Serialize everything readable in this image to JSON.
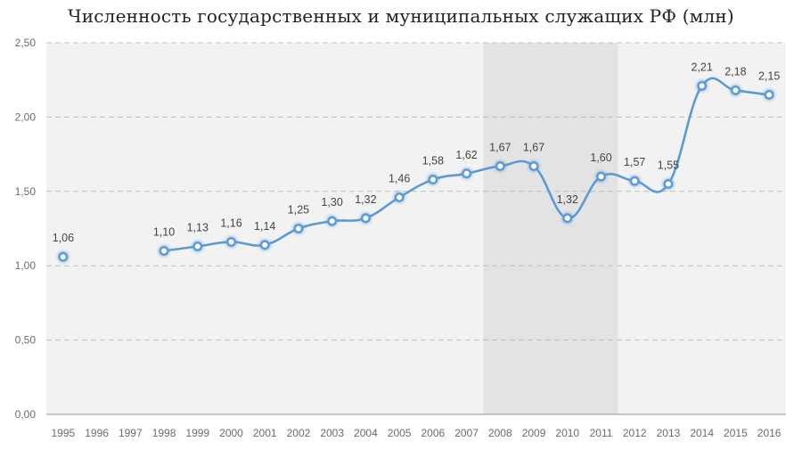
{
  "chart_data": {
    "type": "line",
    "title": "Численность государственных и муниципальных служащих РФ (млн)",
    "xlabel": "",
    "ylabel": "",
    "ylim": [
      0,
      2.5
    ],
    "yticks": [
      "0,00",
      "0,50",
      "1,00",
      "1,50",
      "2,00",
      "2,50"
    ],
    "ytick_values": [
      0,
      0.5,
      1.0,
      1.5,
      2.0,
      2.5
    ],
    "categories": [
      "1995",
      "1996",
      "1997",
      "1998",
      "1999",
      "2000",
      "2001",
      "2002",
      "2003",
      "2004",
      "2005",
      "2006",
      "2007",
      "2008",
      "2009",
      "2010",
      "2011",
      "2012",
      "2013",
      "2014",
      "2015",
      "2016"
    ],
    "series": [
      {
        "values": [
          1.06,
          null,
          null,
          1.1,
          1.13,
          1.16,
          1.14,
          1.25,
          1.3,
          1.32,
          1.46,
          1.58,
          1.62,
          1.67,
          1.67,
          1.32,
          1.6,
          1.57,
          1.55,
          2.21,
          2.18,
          2.15
        ],
        "labels": [
          "1,06",
          "",
          "",
          "1,10",
          "1,13",
          "1,16",
          "1,14",
          "1,25",
          "1,30",
          "1,32",
          "1,46",
          "1,58",
          "1,62",
          "1,67",
          "1,67",
          "1,32",
          "1,60",
          "1,57",
          "1,55",
          "2,21",
          "2,18",
          "2,15"
        ]
      }
    ],
    "highlight_range": [
      "2008",
      "2011"
    ],
    "grid": true,
    "grid_style": "dashed",
    "colors": {
      "line": "#5b9bd5",
      "marker_fill": "#ffffff",
      "plot_background": "#f2f2f2",
      "highlight": "#e3e3e3",
      "grid": "#bfbfbf"
    }
  }
}
